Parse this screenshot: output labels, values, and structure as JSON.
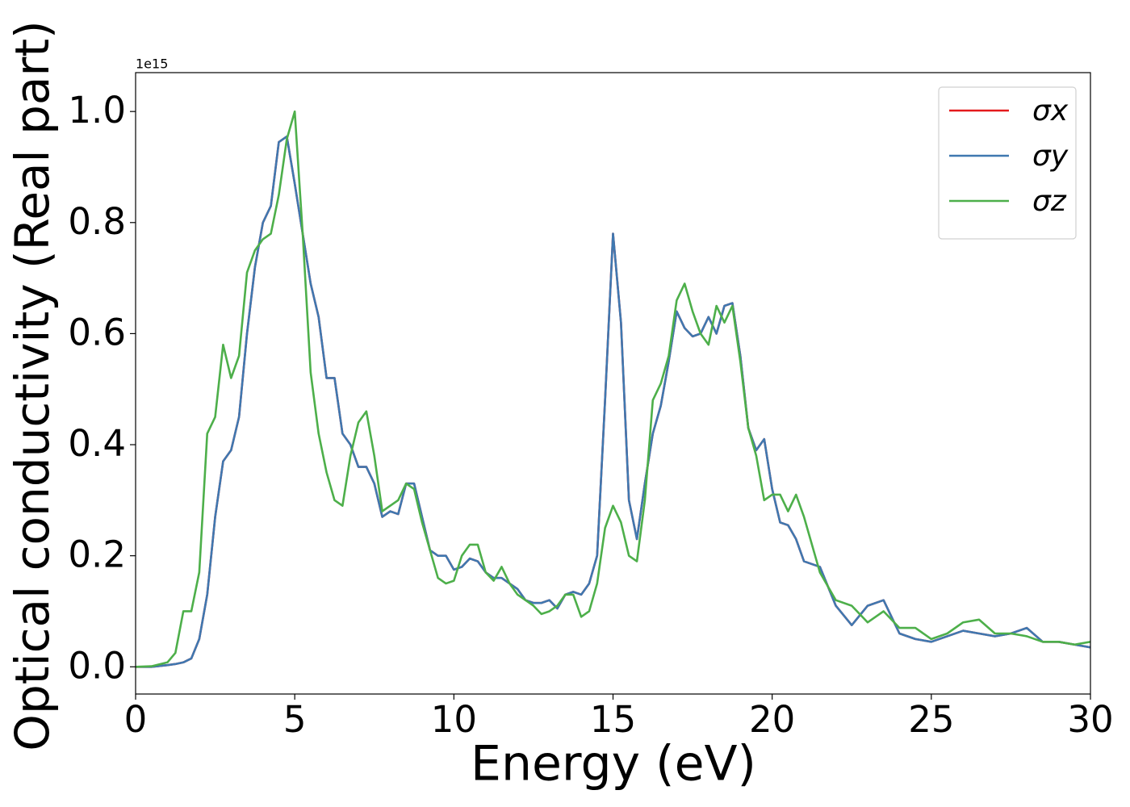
{
  "chart_data": {
    "type": "line",
    "xlabel": "Energy (eV)",
    "ylabel": "Optical conductivity (Real part)",
    "y_offset_label": "1e15",
    "x": [
      0,
      0.5,
      1,
      1.25,
      1.5,
      1.75,
      2,
      2.25,
      2.5,
      2.75,
      3,
      3.25,
      3.5,
      3.75,
      4,
      4.25,
      4.5,
      4.75,
      5,
      5.25,
      5.5,
      5.75,
      6,
      6.25,
      6.5,
      6.75,
      7,
      7.25,
      7.5,
      7.75,
      8,
      8.25,
      8.5,
      8.75,
      9,
      9.25,
      9.5,
      9.75,
      10,
      10.25,
      10.5,
      10.75,
      11,
      11.25,
      11.5,
      11.75,
      12,
      12.25,
      12.5,
      12.75,
      13,
      13.25,
      13.5,
      13.75,
      14,
      14.25,
      14.5,
      14.75,
      15,
      15.25,
      15.5,
      15.75,
      16,
      16.25,
      16.5,
      16.75,
      17,
      17.25,
      17.5,
      17.75,
      18,
      18.25,
      18.5,
      18.75,
      19,
      19.25,
      19.5,
      19.75,
      20,
      20.25,
      20.5,
      20.75,
      21,
      21.5,
      22,
      22.5,
      23,
      23.5,
      24,
      24.5,
      25,
      25.5,
      26,
      26.5,
      27,
      27.5,
      28,
      28.5,
      29,
      29.5,
      30
    ],
    "series": [
      {
        "name": "σx",
        "color": "#e41a1c",
        "values": [
          0,
          0,
          0.003,
          0.005,
          0.008,
          0.015,
          0.05,
          0.13,
          0.27,
          0.37,
          0.39,
          0.45,
          0.6,
          0.72,
          0.8,
          0.83,
          0.945,
          0.955,
          0.87,
          0.78,
          0.69,
          0.63,
          0.52,
          0.52,
          0.42,
          0.4,
          0.36,
          0.36,
          0.33,
          0.27,
          0.28,
          0.275,
          0.33,
          0.33,
          0.27,
          0.21,
          0.2,
          0.2,
          0.175,
          0.18,
          0.195,
          0.19,
          0.17,
          0.16,
          0.16,
          0.15,
          0.14,
          0.12,
          0.115,
          0.115,
          0.12,
          0.105,
          0.13,
          0.135,
          0.13,
          0.15,
          0.2,
          0.48,
          0.78,
          0.62,
          0.3,
          0.23,
          0.33,
          0.42,
          0.47,
          0.55,
          0.64,
          0.61,
          0.595,
          0.6,
          0.63,
          0.6,
          0.65,
          0.655,
          0.56,
          0.43,
          0.39,
          0.41,
          0.32,
          0.26,
          0.255,
          0.23,
          0.19,
          0.18,
          0.11,
          0.075,
          0.11,
          0.12,
          0.06,
          0.05,
          0.045,
          0.055,
          0.065,
          0.06,
          0.055,
          0.06,
          0.07,
          0.045,
          0.045,
          0.04,
          0.035
        ]
      },
      {
        "name": "σy",
        "color": "#3f78b0",
        "values": [
          0,
          0,
          0.003,
          0.005,
          0.008,
          0.015,
          0.05,
          0.13,
          0.27,
          0.37,
          0.39,
          0.45,
          0.6,
          0.72,
          0.8,
          0.83,
          0.945,
          0.955,
          0.87,
          0.78,
          0.69,
          0.63,
          0.52,
          0.52,
          0.42,
          0.4,
          0.36,
          0.36,
          0.33,
          0.27,
          0.28,
          0.275,
          0.33,
          0.33,
          0.27,
          0.21,
          0.2,
          0.2,
          0.175,
          0.18,
          0.195,
          0.19,
          0.17,
          0.16,
          0.16,
          0.15,
          0.14,
          0.12,
          0.115,
          0.115,
          0.12,
          0.105,
          0.13,
          0.135,
          0.13,
          0.15,
          0.2,
          0.48,
          0.78,
          0.62,
          0.3,
          0.23,
          0.33,
          0.42,
          0.47,
          0.55,
          0.64,
          0.61,
          0.595,
          0.6,
          0.63,
          0.6,
          0.65,
          0.655,
          0.56,
          0.43,
          0.39,
          0.41,
          0.32,
          0.26,
          0.255,
          0.23,
          0.19,
          0.18,
          0.11,
          0.075,
          0.11,
          0.12,
          0.06,
          0.05,
          0.045,
          0.055,
          0.065,
          0.06,
          0.055,
          0.06,
          0.07,
          0.045,
          0.045,
          0.04,
          0.035
        ]
      },
      {
        "name": "σz",
        "color": "#4daf4a",
        "values": [
          0,
          0.001,
          0.008,
          0.025,
          0.1,
          0.1,
          0.17,
          0.42,
          0.45,
          0.58,
          0.52,
          0.56,
          0.71,
          0.75,
          0.77,
          0.78,
          0.85,
          0.95,
          1.0,
          0.78,
          0.53,
          0.42,
          0.35,
          0.3,
          0.29,
          0.38,
          0.44,
          0.46,
          0.38,
          0.28,
          0.29,
          0.3,
          0.33,
          0.32,
          0.26,
          0.21,
          0.16,
          0.15,
          0.155,
          0.2,
          0.22,
          0.22,
          0.17,
          0.155,
          0.18,
          0.15,
          0.13,
          0.12,
          0.11,
          0.095,
          0.1,
          0.11,
          0.13,
          0.13,
          0.09,
          0.1,
          0.15,
          0.25,
          0.29,
          0.26,
          0.2,
          0.19,
          0.3,
          0.48,
          0.51,
          0.56,
          0.66,
          0.69,
          0.64,
          0.6,
          0.58,
          0.65,
          0.62,
          0.65,
          0.55,
          0.43,
          0.38,
          0.3,
          0.31,
          0.31,
          0.28,
          0.31,
          0.27,
          0.17,
          0.12,
          0.11,
          0.08,
          0.1,
          0.07,
          0.07,
          0.05,
          0.06,
          0.08,
          0.085,
          0.06,
          0.06,
          0.055,
          0.045,
          0.045,
          0.04,
          0.045
        ]
      }
    ],
    "xlim": [
      0,
      30
    ],
    "xticks": [
      0,
      5,
      10,
      15,
      20,
      25,
      30
    ],
    "ylim": [
      -0.049,
      1.07
    ],
    "yticks": [
      {
        "value": 0,
        "label": "0.0"
      },
      0.2,
      0.4,
      0.6,
      0.8,
      {
        "value": 1,
        "label": "1.0"
      }
    ],
    "grid": false,
    "legend": "upper right"
  }
}
